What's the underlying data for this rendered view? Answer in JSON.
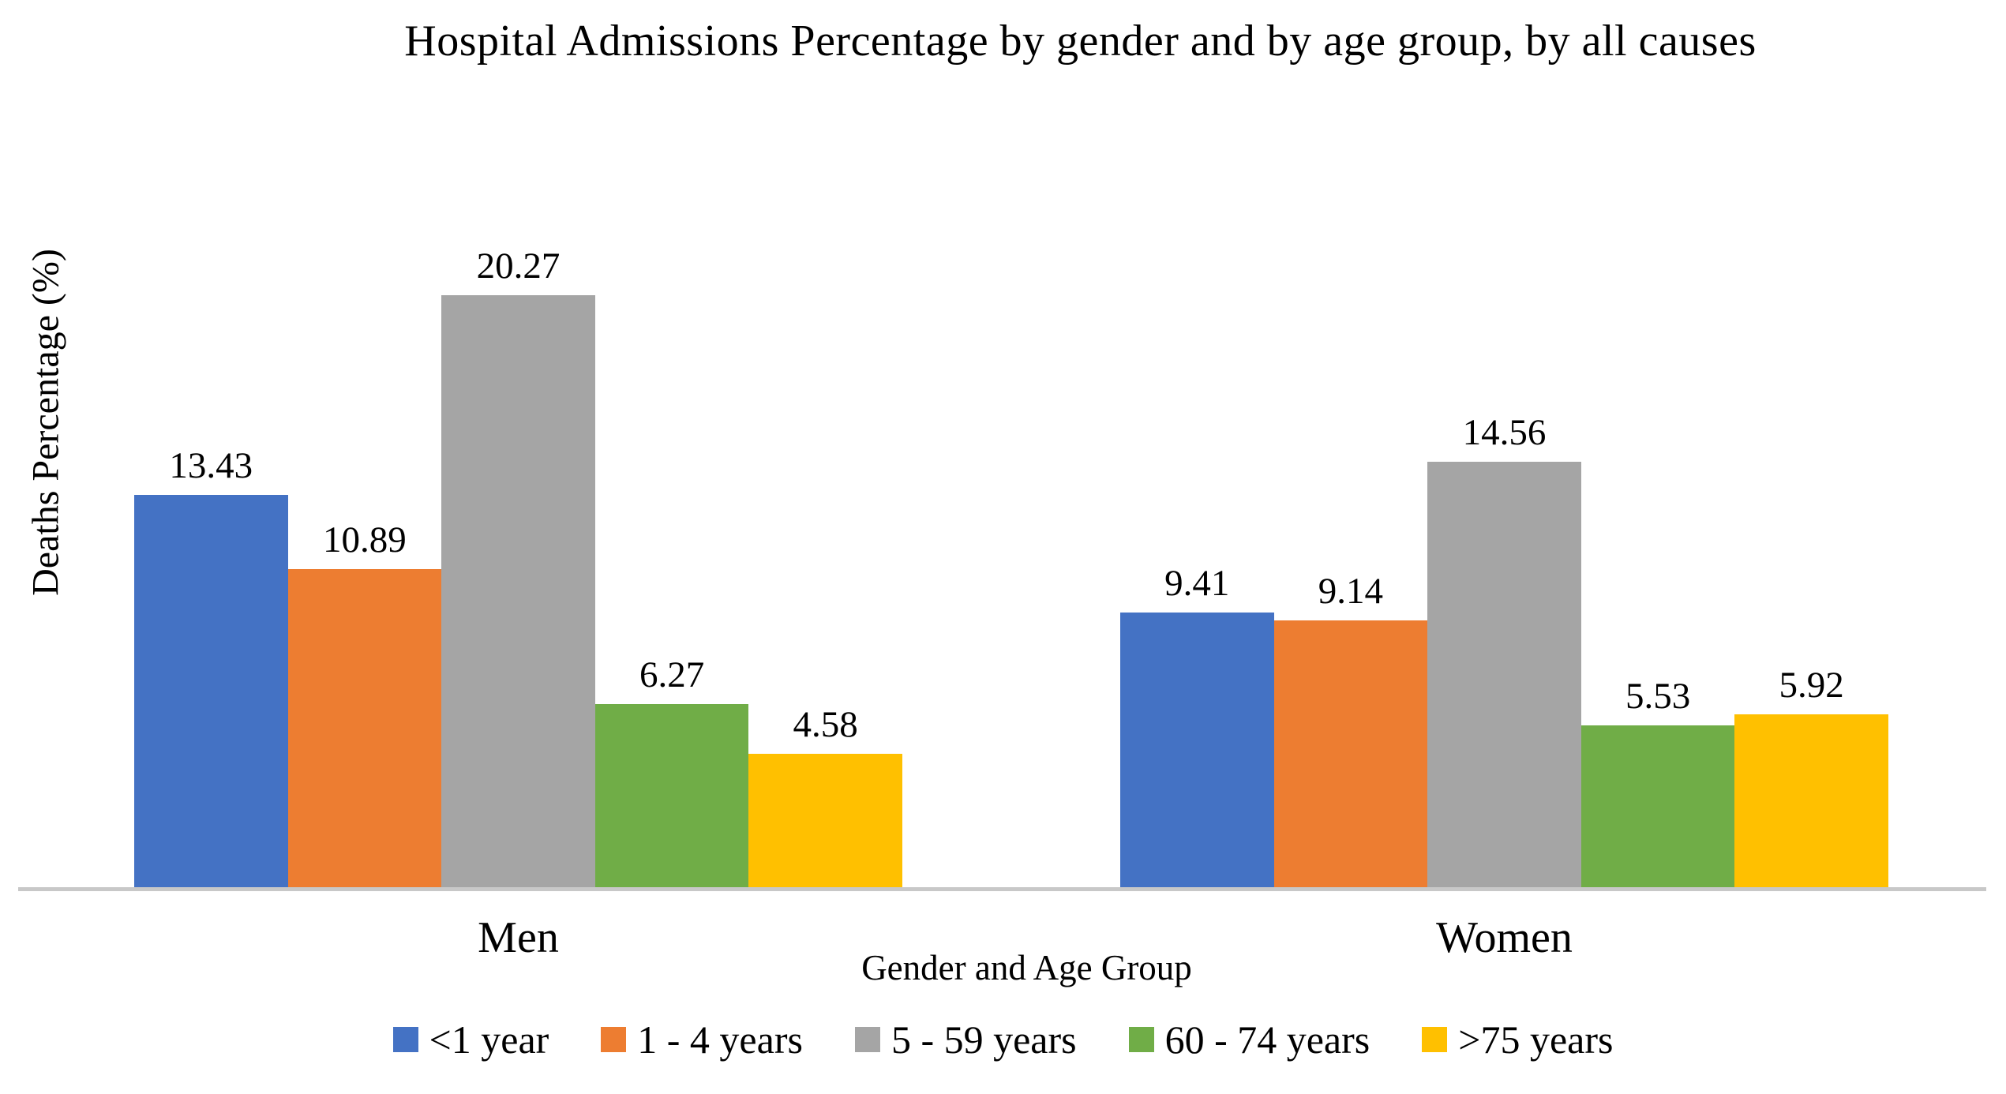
{
  "chart": {
    "title": "Hospital Admissions Percentage by gender and by age group, by all causes",
    "ylabel": "Deaths Percentage (%)",
    "xlabel": "Gender and Age Group"
  },
  "chart_data": {
    "type": "bar",
    "title": "Hospital Admissions Percentage by gender and by age group, by all causes",
    "xlabel": "Gender and Age Group",
    "ylabel": "Deaths Percentage (%)",
    "categories": [
      "Men",
      "Women"
    ],
    "series": [
      {
        "name": "<1 year",
        "color": "#4472C4",
        "values": [
          13.43,
          9.41
        ]
      },
      {
        "name": "1 - 4 years",
        "color": "#ED7D31",
        "values": [
          10.89,
          9.14
        ]
      },
      {
        "name": "5 - 59 years",
        "color": "#A5A5A5",
        "values": [
          20.27,
          14.56
        ]
      },
      {
        "name": "60 - 74 years",
        "color": "#70AD47",
        "values": [
          6.27,
          5.53
        ]
      },
      {
        "name": ">75 years",
        "color": "#FFC000",
        "values": [
          4.58,
          5.92
        ]
      }
    ],
    "ylim": [
      0,
      21
    ],
    "grid": false,
    "y_axis_ticks_visible": false,
    "data_labels": true,
    "legend_position": "bottom",
    "axis_line_color": "#C8C8C8"
  }
}
